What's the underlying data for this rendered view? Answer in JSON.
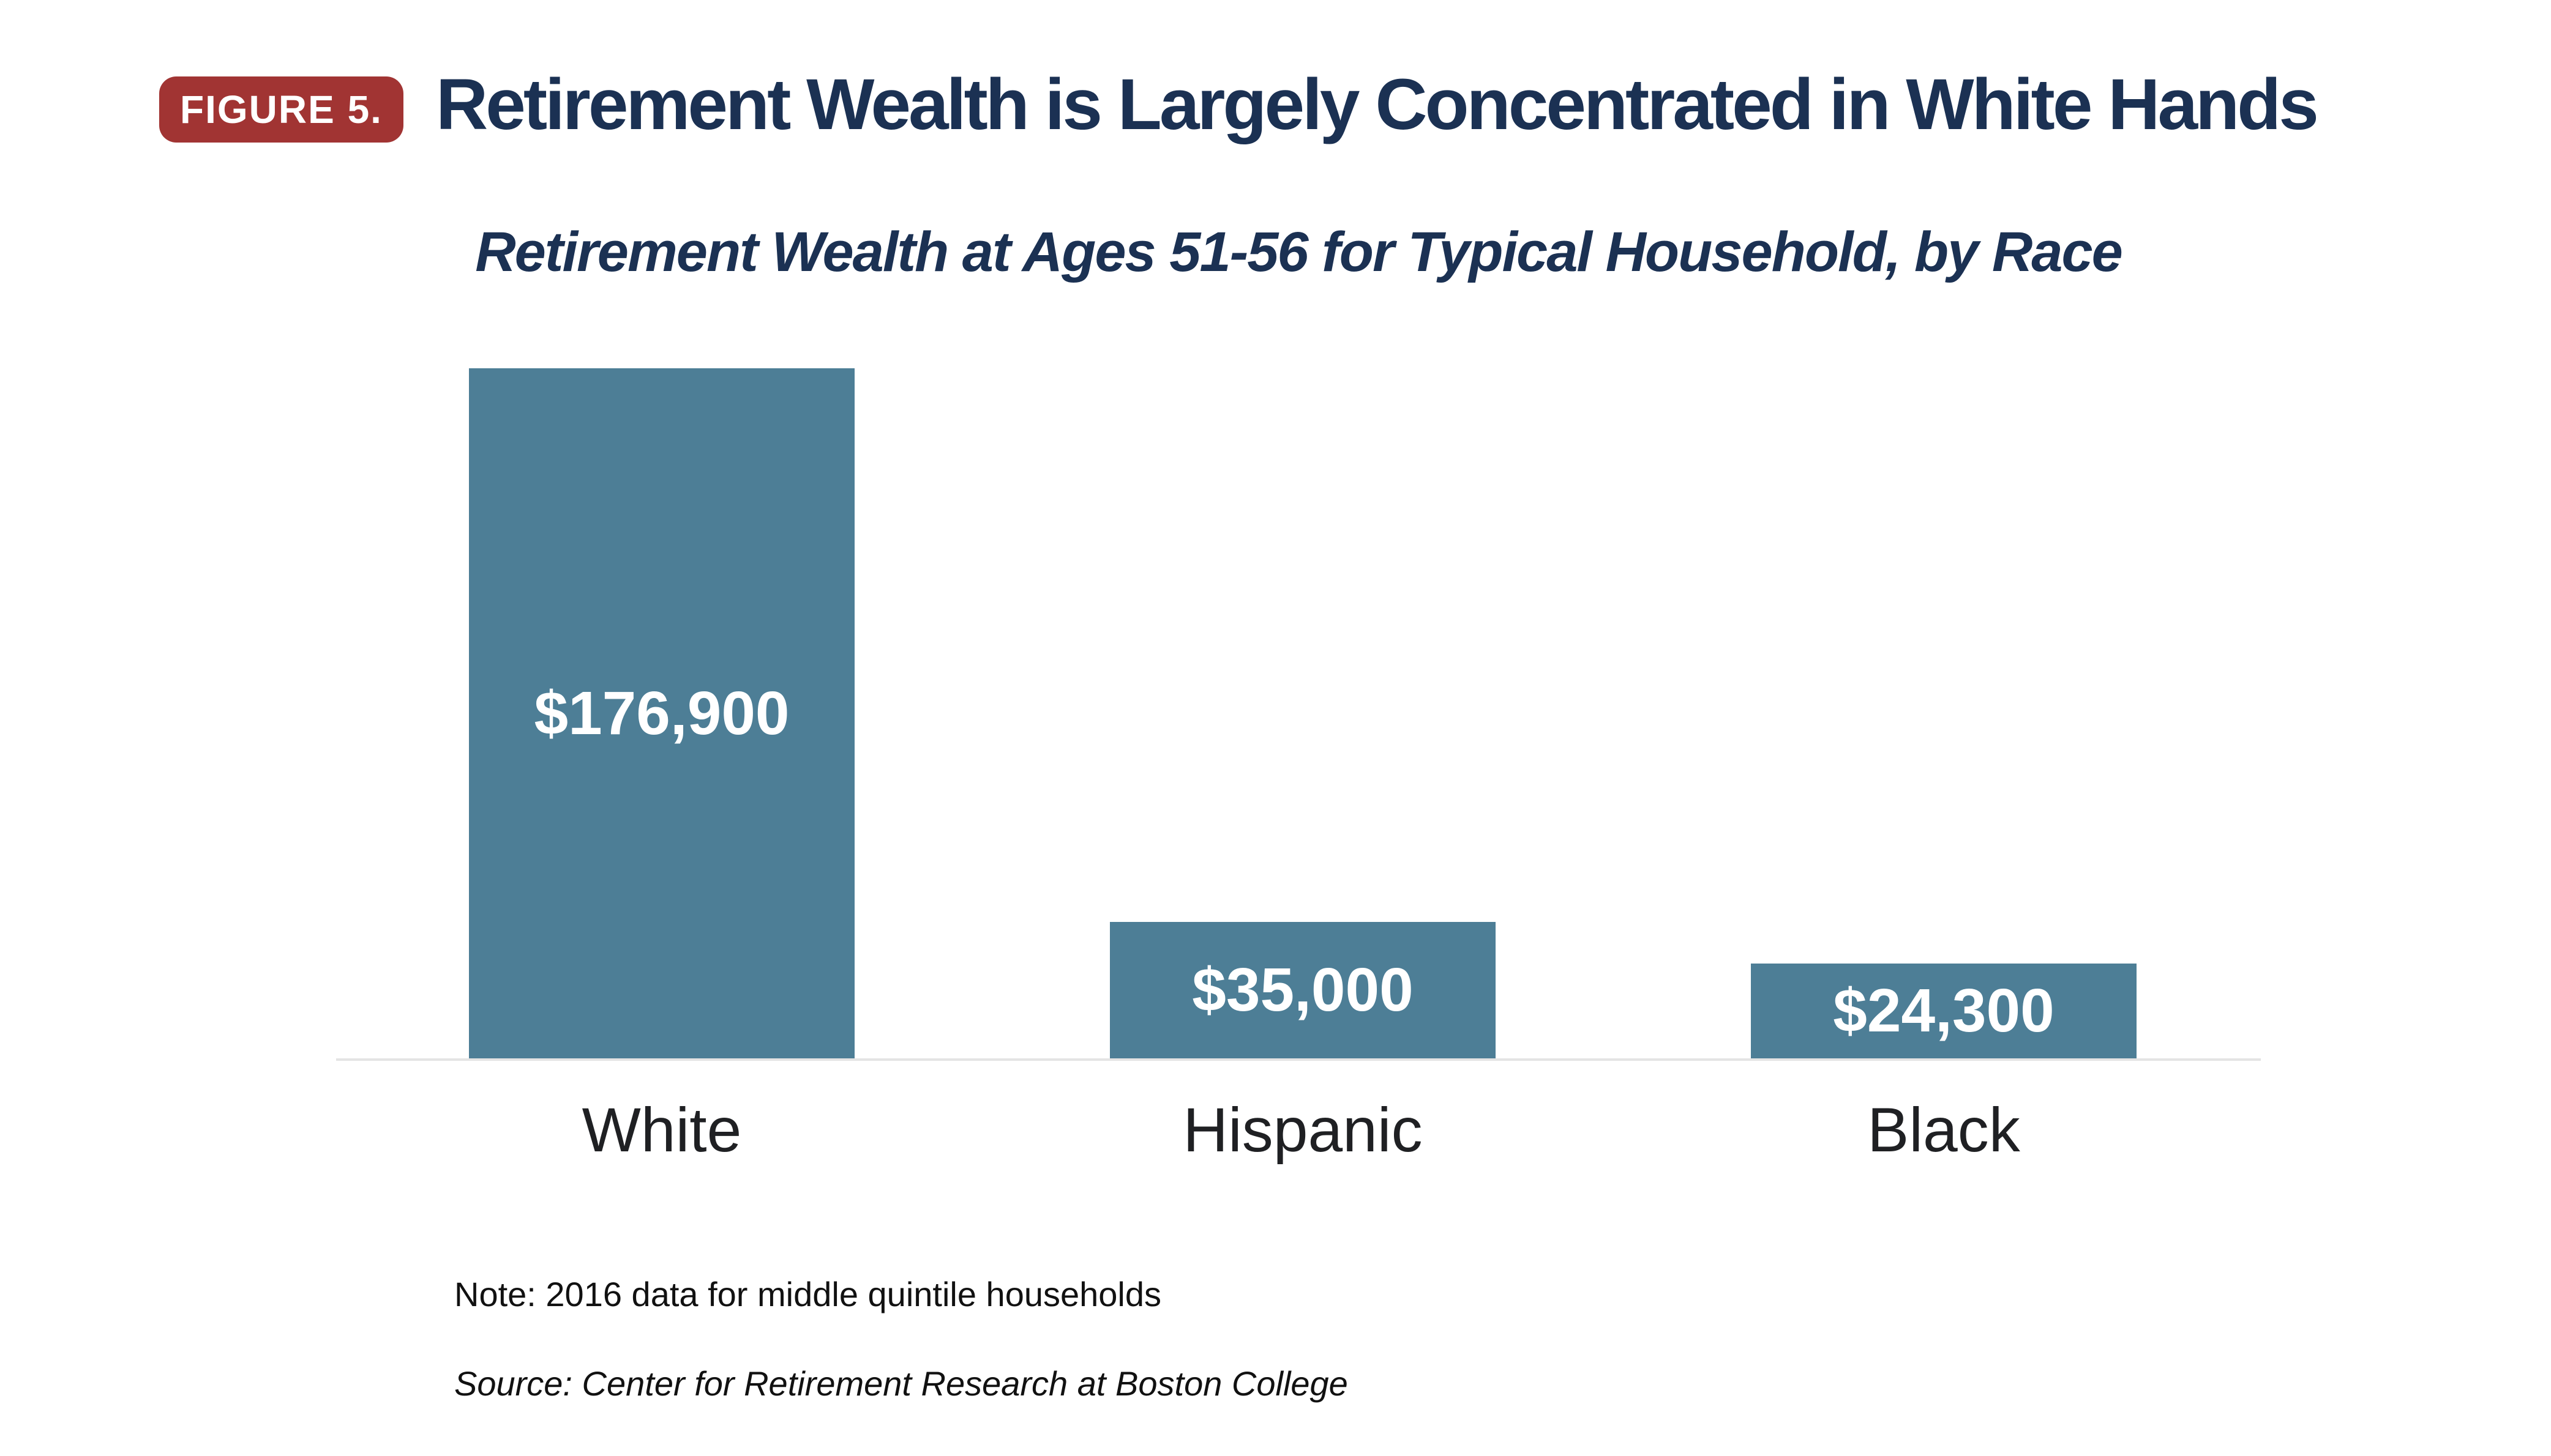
{
  "page": {
    "badge": "FIGURE 5.",
    "title": "Retirement Wealth is Largely Concentrated in White Hands",
    "note": "Note: 2016 data for middle quintile households",
    "source": "Source: Center for Retirement Research at Boston College"
  },
  "colors": {
    "navy": "#1b3153",
    "badge_bg": "#a13433",
    "bar": "#4d7e96",
    "axis_line": "#e4e4e4",
    "category_label": "#1f2023",
    "value_label": "#ffffff",
    "background": "#ffffff"
  },
  "chart_data": {
    "type": "bar",
    "title": "Retirement Wealth at Ages 51-56 for Typical Household, by Race",
    "categories": [
      "White",
      "Hispanic",
      "Black"
    ],
    "values": [
      176900,
      35000,
      24300
    ],
    "value_labels": [
      "$176,900",
      "$35,000",
      "$24,300"
    ],
    "bar_color": "#4d7e96",
    "unit": "USD",
    "ylim": [
      0,
      176900
    ],
    "grid": false,
    "legend": false,
    "orientation": "vertical",
    "value_label_position": "inside-center",
    "xlabel": "",
    "ylabel": ""
  }
}
